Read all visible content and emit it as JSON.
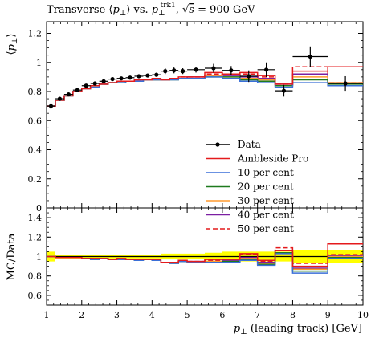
{
  "chart_data": [
    {
      "type": "line",
      "panel": "main",
      "title_parts": {
        "prefix": "Transverse ⟨",
        "p": "p",
        "perp": "⊥",
        "mid": "⟩ vs. ",
        "p2": "p",
        "sub": "⊥",
        "sup": "trk1",
        "sep": ", ",
        "sqrt": "√",
        "s": "s",
        "energy": " = 900 GeV"
      },
      "ylabel_parts": {
        "open": "⟨",
        "p": "p",
        "perp": "⊥",
        "close": "⟩"
      },
      "xlim": [
        1,
        10
      ],
      "ylim": [
        0,
        1.28
      ],
      "y_ticks": [
        0,
        0.2,
        0.4,
        0.6,
        0.8,
        1,
        1.2
      ],
      "y_tick_labels": [
        "0",
        "0.2",
        "0.4",
        "0.6",
        "0.8",
        "1",
        "1.2"
      ],
      "x_edges": [
        1,
        1.25,
        1.5,
        1.75,
        2,
        2.25,
        2.5,
        2.75,
        3,
        3.25,
        3.5,
        3.75,
        4,
        4.25,
        4.5,
        4.75,
        5,
        5.5,
        6,
        6.5,
        7,
        7.5,
        8,
        9,
        10
      ],
      "data": {
        "name": "Data",
        "x": [
          1.125,
          1.375,
          1.625,
          1.875,
          2.125,
          2.375,
          2.625,
          2.875,
          3.125,
          3.375,
          3.625,
          3.875,
          4.125,
          4.375,
          4.625,
          4.875,
          5.25,
          5.75,
          6.25,
          6.75,
          7.25,
          7.75,
          8.5,
          9.5
        ],
        "y": [
          0.7,
          0.75,
          0.78,
          0.81,
          0.84,
          0.855,
          0.87,
          0.885,
          0.89,
          0.895,
          0.905,
          0.91,
          0.915,
          0.94,
          0.945,
          0.94,
          0.95,
          0.96,
          0.945,
          0.905,
          0.95,
          0.805,
          1.04,
          0.855
        ],
        "yerr": [
          0.02,
          0.01,
          0.01,
          0.01,
          0.01,
          0.01,
          0.01,
          0.01,
          0.01,
          0.01,
          0.01,
          0.01,
          0.01,
          0.02,
          0.02,
          0.02,
          0.02,
          0.03,
          0.03,
          0.04,
          0.05,
          0.04,
          0.07,
          0.05
        ]
      },
      "series": [
        {
          "name": "Ambleside Pro",
          "color": "#e41a1c",
          "style": "solid",
          "values": [
            0.7,
            0.74,
            0.77,
            0.8,
            0.82,
            0.84,
            0.85,
            0.86,
            0.87,
            0.87,
            0.88,
            0.88,
            0.89,
            0.88,
            0.89,
            0.9,
            0.9,
            0.93,
            0.92,
            0.93,
            0.91,
            0.85,
            0.94,
            0.97
          ]
        },
        {
          "name": "10 per cent",
          "color": "#3a6fd8",
          "style": "solid",
          "values": [
            0.7,
            0.74,
            0.77,
            0.8,
            0.82,
            0.83,
            0.85,
            0.86,
            0.86,
            0.87,
            0.87,
            0.88,
            0.88,
            0.88,
            0.88,
            0.89,
            0.89,
            0.9,
            0.89,
            0.87,
            0.86,
            0.83,
            0.86,
            0.84
          ]
        },
        {
          "name": "20 per cent",
          "color": "#1e7a1e",
          "style": "solid",
          "values": [
            0.7,
            0.74,
            0.77,
            0.8,
            0.82,
            0.83,
            0.85,
            0.86,
            0.86,
            0.87,
            0.87,
            0.88,
            0.88,
            0.88,
            0.88,
            0.89,
            0.89,
            0.9,
            0.9,
            0.88,
            0.87,
            0.84,
            0.88,
            0.85
          ]
        },
        {
          "name": "30 per cent",
          "color": "#ff9a2e",
          "style": "solid",
          "values": [
            0.7,
            0.74,
            0.77,
            0.8,
            0.82,
            0.84,
            0.85,
            0.86,
            0.87,
            0.87,
            0.87,
            0.88,
            0.88,
            0.88,
            0.89,
            0.89,
            0.89,
            0.91,
            0.9,
            0.89,
            0.88,
            0.84,
            0.9,
            0.86
          ]
        },
        {
          "name": "40 per cent",
          "color": "#7b1fa2",
          "style": "solid",
          "values": [
            0.7,
            0.74,
            0.77,
            0.8,
            0.82,
            0.84,
            0.85,
            0.86,
            0.87,
            0.87,
            0.88,
            0.88,
            0.88,
            0.88,
            0.89,
            0.89,
            0.9,
            0.91,
            0.91,
            0.9,
            0.89,
            0.85,
            0.92,
            0.86
          ]
        },
        {
          "name": "50 per cent",
          "color": "#e41a1c",
          "style": "dashed",
          "values": [
            0.7,
            0.74,
            0.77,
            0.8,
            0.82,
            0.84,
            0.85,
            0.86,
            0.87,
            0.87,
            0.88,
            0.88,
            0.89,
            0.88,
            0.89,
            0.9,
            0.9,
            0.92,
            0.92,
            0.92,
            0.9,
            0.85,
            0.97,
            0.86
          ]
        }
      ],
      "legend_placement": "lower-right"
    },
    {
      "type": "line",
      "panel": "ratio",
      "ylabel": "MC/Data",
      "xlim": [
        1,
        10
      ],
      "ylim": [
        0.5,
        1.5
      ],
      "y_ticks": [
        0.6,
        0.8,
        1,
        1.2,
        1.4
      ],
      "y_tick_labels": [
        "0.6",
        "0.8",
        "1",
        "1.2",
        "1.4"
      ],
      "x_ticks": [
        1,
        2,
        3,
        4,
        5,
        6,
        7,
        8,
        9,
        10
      ],
      "x_tick_labels": [
        "1",
        "2",
        "3",
        "4",
        "5",
        "6",
        "7",
        "8",
        "9",
        "10"
      ],
      "xlabel_parts": {
        "p": "p",
        "perp": "⊥",
        "rest": " (leading track) [GeV]"
      },
      "band": {
        "color": "#ffff00",
        "x_edges": [
          1,
          1.25,
          1.5,
          1.75,
          2,
          2.25,
          2.5,
          2.75,
          3,
          3.25,
          3.5,
          3.75,
          4,
          4.25,
          4.5,
          4.75,
          5,
          5.5,
          6,
          6.5,
          7,
          7.5,
          8,
          9,
          10
        ],
        "halfwidth": [
          0.05,
          0.02,
          0.02,
          0.02,
          0.02,
          0.02,
          0.02,
          0.02,
          0.02,
          0.02,
          0.02,
          0.02,
          0.02,
          0.03,
          0.03,
          0.03,
          0.03,
          0.04,
          0.05,
          0.05,
          0.05,
          0.05,
          0.07,
          0.07
        ]
      },
      "series": [
        {
          "name": "Ambleside Pro",
          "color": "#e41a1c",
          "style": "solid",
          "values": [
            1.0,
            0.99,
            0.99,
            0.99,
            0.98,
            0.98,
            0.98,
            0.97,
            0.98,
            0.97,
            0.97,
            0.97,
            0.97,
            0.94,
            0.94,
            0.96,
            0.95,
            0.97,
            0.97,
            1.03,
            0.96,
            1.06,
            0.9,
            1.13
          ]
        },
        {
          "name": "10 per cent",
          "color": "#3a6fd8",
          "style": "solid",
          "values": [
            1.0,
            0.99,
            0.99,
            0.99,
            0.98,
            0.97,
            0.98,
            0.97,
            0.97,
            0.97,
            0.96,
            0.97,
            0.96,
            0.94,
            0.93,
            0.95,
            0.94,
            0.94,
            0.94,
            0.96,
            0.91,
            1.03,
            0.83,
            0.98
          ]
        },
        {
          "name": "20 per cent",
          "color": "#1e7a1e",
          "style": "solid",
          "values": [
            1.0,
            0.99,
            0.99,
            0.99,
            0.98,
            0.97,
            0.98,
            0.97,
            0.97,
            0.97,
            0.96,
            0.97,
            0.96,
            0.94,
            0.93,
            0.95,
            0.94,
            0.94,
            0.95,
            0.97,
            0.92,
            1.04,
            0.85,
            0.99
          ]
        },
        {
          "name": "30 per cent",
          "color": "#ff9a2e",
          "style": "solid",
          "values": [
            1.0,
            0.99,
            0.99,
            0.99,
            0.98,
            0.98,
            0.98,
            0.97,
            0.98,
            0.97,
            0.96,
            0.97,
            0.96,
            0.94,
            0.94,
            0.95,
            0.94,
            0.95,
            0.95,
            0.98,
            0.93,
            1.04,
            0.87,
            1.0
          ]
        },
        {
          "name": "40 per cent",
          "color": "#7b1fa2",
          "style": "solid",
          "values": [
            1.0,
            0.99,
            0.99,
            0.99,
            0.98,
            0.98,
            0.98,
            0.97,
            0.98,
            0.97,
            0.97,
            0.97,
            0.96,
            0.94,
            0.94,
            0.95,
            0.95,
            0.95,
            0.96,
            0.99,
            0.94,
            1.06,
            0.88,
            1.01
          ]
        },
        {
          "name": "50 per cent",
          "color": "#e41a1c",
          "style": "dashed",
          "values": [
            1.0,
            0.99,
            0.99,
            0.99,
            0.98,
            0.98,
            0.98,
            0.97,
            0.98,
            0.97,
            0.97,
            0.97,
            0.97,
            0.94,
            0.94,
            0.96,
            0.95,
            0.96,
            0.97,
            1.02,
            0.95,
            1.09,
            0.93,
            1.02
          ]
        }
      ]
    }
  ]
}
